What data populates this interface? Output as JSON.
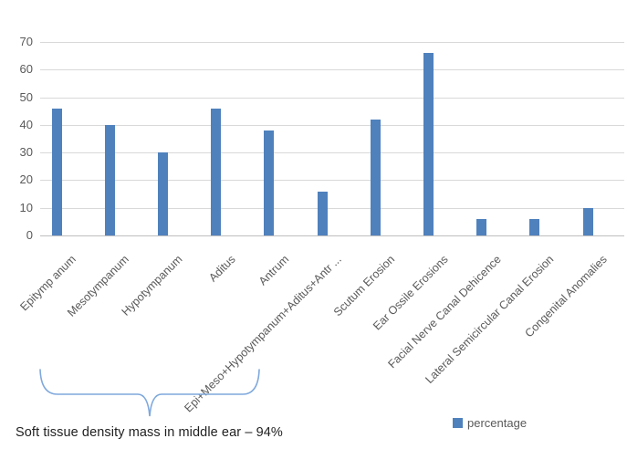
{
  "chart_data": {
    "type": "bar",
    "title": "",
    "xlabel": "",
    "ylabel": "",
    "categories": [
      "Epitymp anum",
      "Mesotympanum",
      "Hypotympanum",
      "Aditus",
      "Antrum",
      "Epi+Meso+Hypotympanum+Aditus+Antr ...",
      "Scutum Erosion",
      "Ear Ossile Erosions",
      "Facial Nerve Canal Dehicence",
      "Lateral Semicircular Canal Erosion",
      "Congenital Anomalies"
    ],
    "series": [
      {
        "name": "percentage",
        "values": [
          46,
          40,
          30,
          46,
          38,
          16,
          42,
          66,
          6,
          6,
          10
        ]
      }
    ],
    "ylim": [
      0,
      70
    ],
    "yticks": [
      0,
      10,
      20,
      30,
      40,
      50,
      60,
      70
    ],
    "grid": true,
    "legend_position": "bottom-right",
    "bar_color": "#4F81BD",
    "gridline_color": "#d9d9d9",
    "axis_text_color": "#595959",
    "annotation": {
      "text": "Soft tissue density mass in middle ear – 94%",
      "brace_span_categories": [
        0,
        4
      ],
      "brace_color": "#7FA8DC"
    }
  }
}
